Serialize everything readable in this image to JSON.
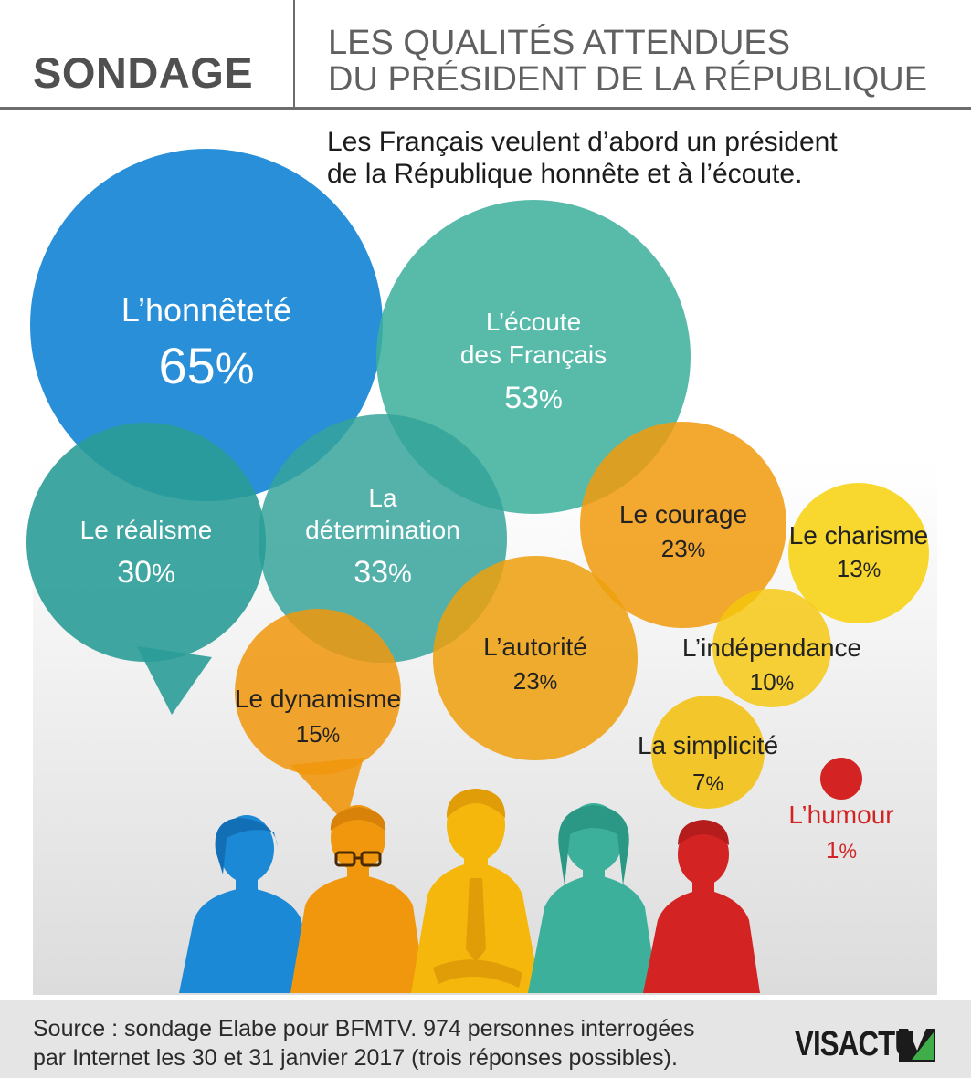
{
  "header": {
    "kicker": "SONDAGE",
    "title_line1": "LES QUALITÉS ATTENDUES",
    "title_line2": "DU PRÉSIDENT DE LA RÉPUBLIQUE"
  },
  "subtitle": {
    "line1": "Les Français veulent d’abord un président",
    "line2": "de la République honnête et à l’écoute."
  },
  "chart_data": {
    "type": "bubble",
    "title": "LES QUALITÉS ATTENDUES DU PRÉSIDENT DE LA RÉPUBLIQUE",
    "unit": "%",
    "categories": [
      "L’honnêteté",
      "L’écoute des Français",
      "La détermination",
      "Le réalisme",
      "Le courage",
      "L’autorité",
      "Le dynamisme",
      "Le charisme",
      "L’indépendance",
      "La simplicité",
      "L’humour"
    ],
    "values": [
      65,
      53,
      33,
      30,
      23,
      23,
      15,
      13,
      10,
      7,
      1
    ],
    "items": [
      {
        "label_lines": [
          "L’honnêteté"
        ],
        "value": "65",
        "unit": "%",
        "color": "#1c89d6"
      },
      {
        "label_lines": [
          "L’écoute",
          "des Français"
        ],
        "value": "53",
        "unit": "%",
        "color": "#3db09c"
      },
      {
        "label_lines": [
          "La",
          "détermination"
        ],
        "value": "33",
        "unit": "%",
        "color": "#35a39b"
      },
      {
        "label_lines": [
          "Le réalisme"
        ],
        "value": "30",
        "unit": "%",
        "color": "#2a9c97"
      },
      {
        "label_lines": [
          "Le courage"
        ],
        "value": "23",
        "unit": "%",
        "color": "#f19a0e"
      },
      {
        "label_lines": [
          "L’autorité"
        ],
        "value": "23",
        "unit": "%",
        "color": "#eea00d"
      },
      {
        "label_lines": [
          "Le dynamisme"
        ],
        "value": "15",
        "unit": "%",
        "color": "#f0970d"
      },
      {
        "label_lines": [
          "Le charisme"
        ],
        "value": "13",
        "unit": "%",
        "color": "#f7d20c"
      },
      {
        "label_lines": [
          "L’indépendance"
        ],
        "value": "10",
        "unit": "%",
        "color": "#f5c70b"
      },
      {
        "label_lines": [
          "La simplicité"
        ],
        "value": "7",
        "unit": "%",
        "color": "#f3c00b"
      },
      {
        "label_lines": [
          "L’humour"
        ],
        "value": "1",
        "unit": "%",
        "color": "#d32323"
      }
    ]
  },
  "colors": {
    "grey_text": "#505050",
    "blue": "#1c89d6",
    "teal": "#3db09c",
    "orange": "#f0970d",
    "yellow": "#f5c70b",
    "red": "#d32323"
  },
  "footer": {
    "source_line1": "Source : sondage Elabe pour BFMTV. 974 personnes interrogées",
    "source_line2": "par Internet les 30 et 31 janvier 2017 (trois réponses possibles).",
    "logo": "VISACTU"
  }
}
